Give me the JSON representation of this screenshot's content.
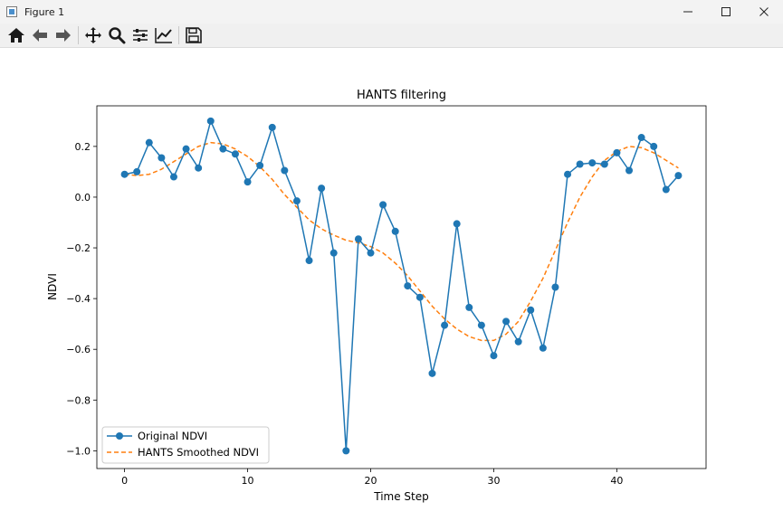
{
  "window": {
    "title": "Figure 1"
  },
  "toolbar": {
    "buttons": [
      "home-icon",
      "back-icon",
      "forward-icon",
      "pan-icon",
      "zoom-icon",
      "configure-icon",
      "edit-axis-icon",
      "save-icon"
    ]
  },
  "colors": {
    "original": "#1f77b4",
    "smoothed": "#ff7f0e"
  },
  "chart_data": {
    "type": "line",
    "title": "HANTS filtering",
    "xlabel": "Time Step",
    "ylabel": "NDVI",
    "xlim": [
      -2.25,
      47.25
    ],
    "ylim": [
      -1.07,
      0.36
    ],
    "xticks": [
      0,
      10,
      20,
      30,
      40
    ],
    "yticks": [
      -1.0,
      -0.8,
      -0.6,
      -0.4,
      -0.2,
      0.0,
      0.2
    ],
    "ytick_labels": [
      "−1.0",
      "−0.8",
      "−0.6",
      "−0.4",
      "−0.2",
      "0.0",
      "0.2"
    ],
    "legend_location": "lower-left",
    "series": [
      {
        "name": "Original NDVI",
        "style": "solid-marker",
        "x": [
          0,
          1,
          2,
          3,
          4,
          5,
          6,
          7,
          8,
          9,
          10,
          11,
          12,
          13,
          14,
          15,
          16,
          17,
          18,
          19,
          20,
          21,
          22,
          23,
          24,
          25,
          26,
          27,
          28,
          29,
          30,
          31,
          32,
          33,
          34,
          35,
          36,
          37,
          38,
          39,
          40,
          41,
          42,
          43,
          44,
          45
        ],
        "values": [
          0.09,
          0.1,
          0.215,
          0.155,
          0.08,
          0.19,
          0.115,
          0.3,
          0.19,
          0.17,
          0.06,
          0.125,
          0.275,
          0.105,
          -0.015,
          -0.25,
          0.035,
          -0.22,
          -1.0,
          -0.165,
          -0.22,
          -0.03,
          -0.135,
          -0.35,
          -0.395,
          -0.695,
          -0.505,
          -0.105,
          -0.435,
          -0.505,
          -0.625,
          -0.49,
          -0.57,
          -0.445,
          -0.595,
          -0.355,
          0.09,
          0.13,
          0.135,
          0.13,
          0.175,
          0.105,
          0.235,
          0.2,
          0.03,
          0.085
        ]
      },
      {
        "name": "HANTS Smoothed NDVI",
        "style": "dashed",
        "x": [
          0,
          1,
          2,
          3,
          4,
          5,
          6,
          7,
          8,
          9,
          10,
          11,
          12,
          13,
          14,
          15,
          16,
          17,
          18,
          19,
          20,
          21,
          22,
          23,
          24,
          25,
          26,
          27,
          28,
          29,
          30,
          31,
          32,
          33,
          34,
          35,
          36,
          37,
          38,
          39,
          40,
          41,
          42,
          43,
          44,
          45
        ],
        "values": [
          0.09,
          0.085,
          0.09,
          0.11,
          0.14,
          0.17,
          0.2,
          0.215,
          0.21,
          0.19,
          0.16,
          0.12,
          0.07,
          0.01,
          -0.04,
          -0.09,
          -0.125,
          -0.15,
          -0.17,
          -0.18,
          -0.195,
          -0.22,
          -0.26,
          -0.31,
          -0.37,
          -0.43,
          -0.48,
          -0.52,
          -0.55,
          -0.565,
          -0.565,
          -0.54,
          -0.49,
          -0.41,
          -0.32,
          -0.21,
          -0.1,
          0.0,
          0.08,
          0.145,
          0.18,
          0.2,
          0.195,
          0.175,
          0.145,
          0.115
        ]
      }
    ]
  }
}
